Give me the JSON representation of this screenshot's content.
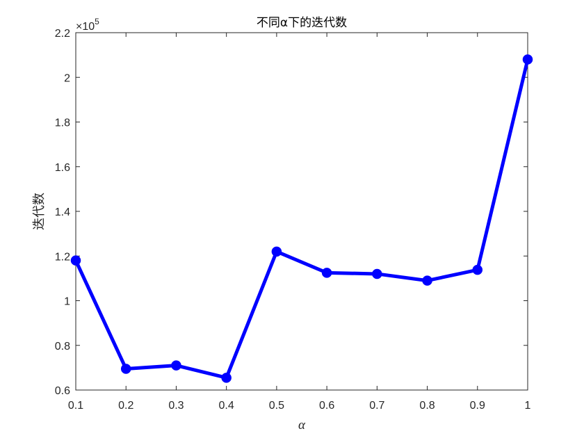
{
  "chart_data": {
    "type": "line",
    "title": "不同α下的迭代数",
    "xlabel": "α",
    "ylabel": "迭代数",
    "exponent_base": "×10",
    "exponent_power": "5",
    "x": [
      0.1,
      0.2,
      0.3,
      0.4,
      0.5,
      0.6,
      0.7,
      0.8,
      0.9,
      1.0
    ],
    "series": [
      {
        "values": [
          118000,
          69500,
          71000,
          65500,
          122000,
          112500,
          112000,
          109000,
          113800,
          208000
        ]
      }
    ],
    "xlim": [
      0.1,
      1.0
    ],
    "ylim": [
      60000,
      220000
    ],
    "xticks": [
      0.1,
      0.2,
      0.3,
      0.4,
      0.5,
      0.6,
      0.7,
      0.8,
      0.9,
      1.0
    ],
    "xtick_labels": [
      "0.1",
      "0.2",
      "0.3",
      "0.4",
      "0.5",
      "0.6",
      "0.7",
      "0.8",
      "0.9",
      "1"
    ],
    "yticks": [
      60000,
      80000,
      100000,
      120000,
      140000,
      160000,
      180000,
      200000,
      220000
    ],
    "ytick_labels": [
      "0.6",
      "0.8",
      "1",
      "1.2",
      "1.4",
      "1.6",
      "1.8",
      "2",
      "2.2"
    ],
    "grid": false,
    "line_color": "#0000ff",
    "axis_color": "#262626"
  }
}
